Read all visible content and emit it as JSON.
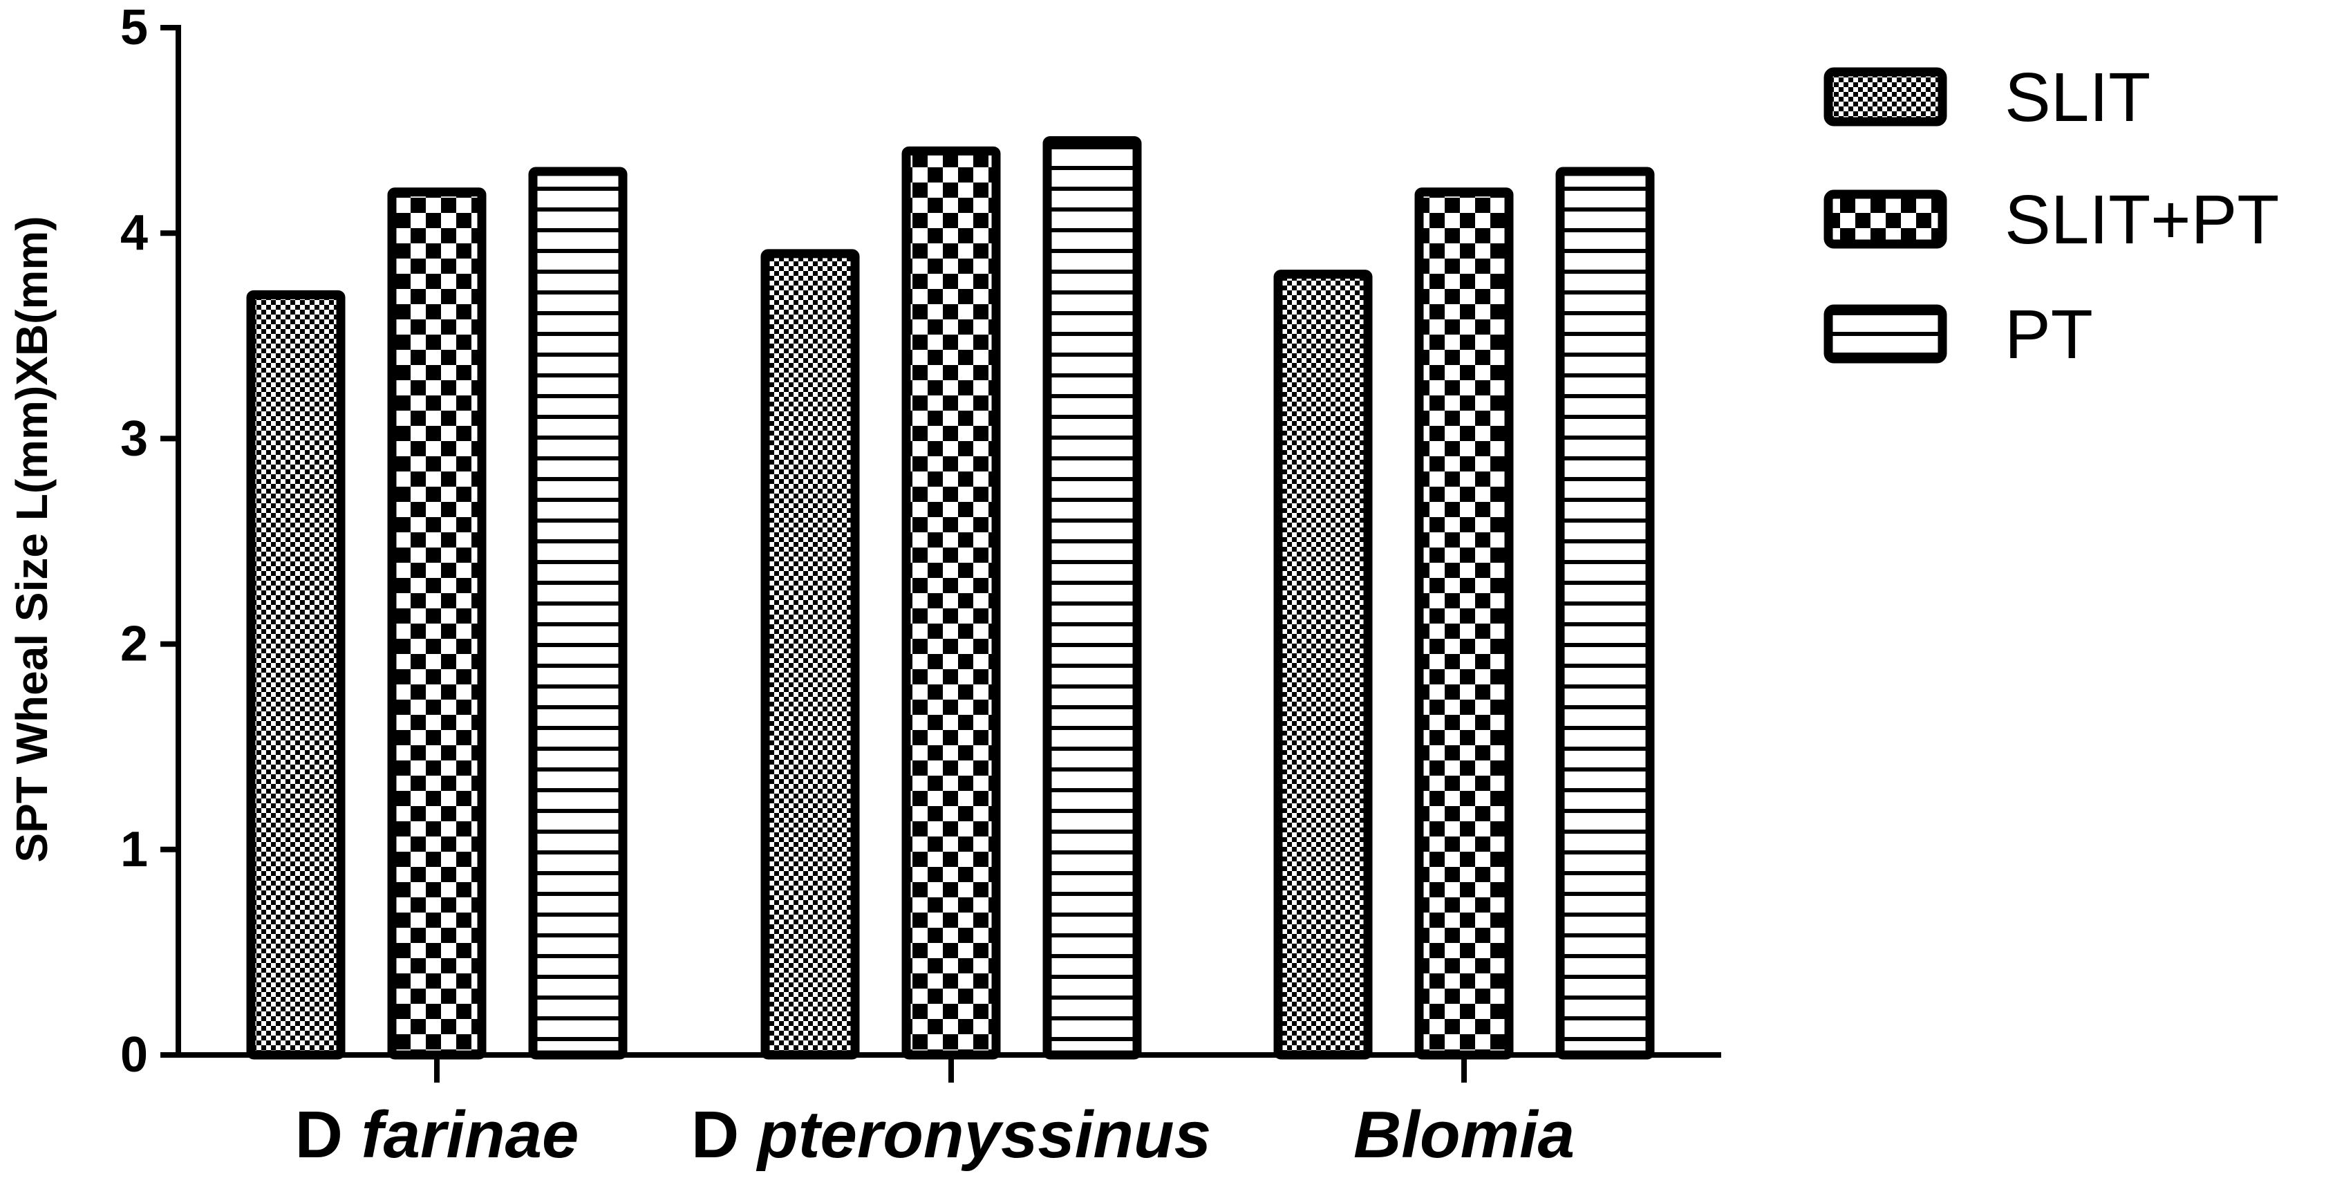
{
  "chart_data": {
    "type": "bar",
    "title": "",
    "ylabel": "SPT Wheal Size L(mm)XB(mm)",
    "xlabel": "",
    "ylim": [
      0,
      5
    ],
    "yticks": [
      0,
      1,
      2,
      3,
      4,
      5
    ],
    "categories": [
      {
        "parts": [
          {
            "text": "D ",
            "italic": false
          },
          {
            "text": "farinae",
            "italic": true
          }
        ]
      },
      {
        "parts": [
          {
            "text": "D ",
            "italic": false
          },
          {
            "text": "pteronyssinus",
            "italic": true
          }
        ]
      },
      {
        "parts": [
          {
            "text": "Blomia",
            "italic": true
          }
        ]
      }
    ],
    "series": [
      {
        "name": "SLIT",
        "pattern": "fine-check",
        "values": [
          3.7,
          3.9,
          3.8
        ]
      },
      {
        "name": "SLIT+PT",
        "pattern": "coarse-check",
        "values": [
          4.2,
          4.4,
          4.2
        ]
      },
      {
        "name": "PT",
        "pattern": "horizontal-lines",
        "values": [
          4.3,
          4.45,
          4.3
        ]
      }
    ],
    "legend": "top-right",
    "grid": false
  }
}
